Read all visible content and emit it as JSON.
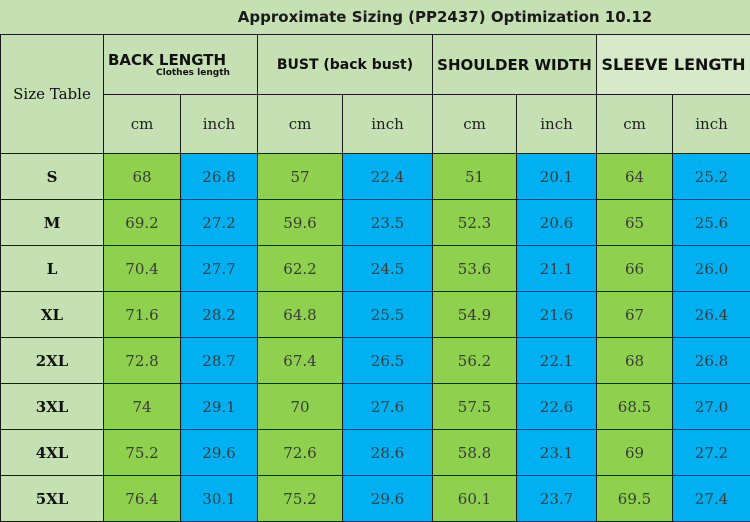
{
  "title": "Approximate Sizing (PP2437) Optimization 10.12",
  "corner_label": "Size Table",
  "groups": [
    {
      "label": "BACK LENGTH",
      "sub": "Clothes length"
    },
    {
      "label": "BUST (back bust)"
    },
    {
      "label": "SHOULDER WIDTH"
    },
    {
      "label": "SLEEVE LENGTH"
    }
  ],
  "units": [
    "cm",
    "inch",
    "cm",
    "inch",
    "cm",
    "inch",
    "cm",
    "inch"
  ],
  "rows": [
    {
      "size": "S",
      "values": [
        "68",
        "26.8",
        "57",
        "22.4",
        "51",
        "20.1",
        "64",
        "25.2"
      ]
    },
    {
      "size": "M",
      "values": [
        "69.2",
        "27.2",
        "59.6",
        "23.5",
        "52.3",
        "20.6",
        "65",
        "25.6"
      ]
    },
    {
      "size": "L",
      "values": [
        "70.4",
        "27.7",
        "62.2",
        "24.5",
        "53.6",
        "21.1",
        "66",
        "26.0"
      ]
    },
    {
      "size": "XL",
      "values": [
        "71.6",
        "28.2",
        "64.8",
        "25.5",
        "54.9",
        "21.6",
        "67",
        "26.4"
      ]
    },
    {
      "size": "2XL",
      "values": [
        "72.8",
        "28.7",
        "67.4",
        "26.5",
        "56.2",
        "22.1",
        "68",
        "26.8"
      ]
    },
    {
      "size": "3XL",
      "values": [
        "74",
        "29.1",
        "70",
        "27.6",
        "57.5",
        "22.6",
        "68.5",
        "27.0"
      ]
    },
    {
      "size": "4XL",
      "values": [
        "75.2",
        "29.6",
        "72.6",
        "28.6",
        "58.8",
        "23.1",
        "69",
        "27.2"
      ]
    },
    {
      "size": "5XL",
      "values": [
        "76.4",
        "30.1",
        "75.2",
        "29.6",
        "60.1",
        "23.7",
        "69.5",
        "27.4"
      ]
    }
  ],
  "colors": {
    "header_bg": "#c5e0b2",
    "cm_cell": "#8fd14f",
    "inch_cell": "#00b0f0"
  }
}
